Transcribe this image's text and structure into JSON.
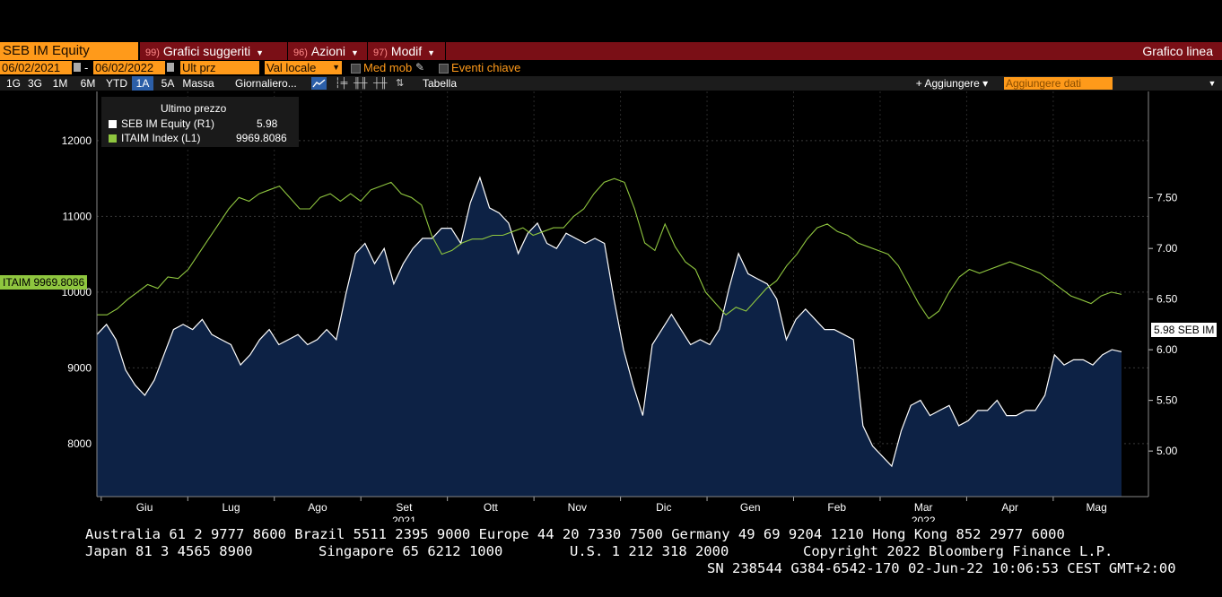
{
  "toolbar": {
    "ticker": "SEB IM Equity",
    "menu1_num": "99)",
    "menu1": "Grafici suggeriti",
    "menu2_num": "96)",
    "menu2": "Azioni",
    "menu3_num": "97)",
    "menu3": "Modif",
    "chart_type": "Grafico linea"
  },
  "options": {
    "date_from": "06/02/2021",
    "date_sep": "-",
    "date_to": "06/02/2022",
    "field": "Ult prz",
    "currency": "Val locale",
    "moving_avg": "Med mob",
    "key_events": "Eventi chiave"
  },
  "periods": [
    "1G",
    "3G",
    "1M",
    "6M",
    "YTD",
    "1A",
    "5A",
    "Massa"
  ],
  "active_period": "1A",
  "controls": {
    "interval": "Giornaliero...",
    "table": "Tabella",
    "add": "+ Aggiungere ▾",
    "add_data_placeholder": "Aggiungere dati"
  },
  "legend": {
    "header": "Ultimo prezzo",
    "rows": [
      {
        "label": "SEB IM Equity  (R1)",
        "value": "5.98",
        "color": "#ffffff"
      },
      {
        "label": "ITAIM Index  (L1)",
        "value": "9969.8086",
        "color": "#8fc63f"
      }
    ]
  },
  "badges": {
    "left": "ITAIM 9969.8086",
    "right": "5.98 SEB IM"
  },
  "footer": {
    "line1": "Australia 61 2 9777 8600 Brazil 5511 2395 9000 Europe 44 20 7330 7500 Germany 49 69 9204 1210 Hong Kong 852 2977 6000",
    "line2a": "Japan 81 3 4565 8900",
    "line2b": "Singapore 65 6212 1000",
    "line2c": "U.S. 1 212 318 2000",
    "line2d": "Copyright 2022 Bloomberg Finance L.P.",
    "line3": "SN 238544 G384-6542-170 02-Jun-22 10:06:53 CEST GMT+2:00"
  },
  "chart_data": {
    "type": "line",
    "x_labels": [
      "Giu",
      "Lug",
      "Ago",
      "Set",
      "Ott",
      "Nov",
      "Dic",
      "Gen",
      "Feb",
      "Mar",
      "Apr",
      "Mag"
    ],
    "year_labels": [
      {
        "label": "2021",
        "at": "Set"
      },
      {
        "label": "2022",
        "at": "Mar"
      }
    ],
    "left_axis": {
      "ticks": [
        8000,
        9000,
        10000,
        11000,
        12000
      ],
      "range": [
        7300,
        12650
      ]
    },
    "right_axis": {
      "ticks": [
        "5.00",
        "5.50",
        "6.00",
        "6.50",
        "7.00",
        "7.50"
      ],
      "range": [
        4.55,
        8.55
      ]
    },
    "series": [
      {
        "name": "SEB IM Equity",
        "axis": "right",
        "color": "#ffffff",
        "fill": "#0d2245",
        "values": [
          6.15,
          6.25,
          6.1,
          5.8,
          5.65,
          5.55,
          5.7,
          5.95,
          6.2,
          6.25,
          6.2,
          6.3,
          6.15,
          6.1,
          6.05,
          5.85,
          5.95,
          6.1,
          6.2,
          6.05,
          6.1,
          6.15,
          6.05,
          6.1,
          6.2,
          6.1,
          6.55,
          6.95,
          7.05,
          6.85,
          7.0,
          6.65,
          6.85,
          7.0,
          7.1,
          7.1,
          7.2,
          7.2,
          7.05,
          7.45,
          7.7,
          7.4,
          7.35,
          7.25,
          6.95,
          7.15,
          7.25,
          7.05,
          7.0,
          7.15,
          7.1,
          7.05,
          7.1,
          7.05,
          6.5,
          6.0,
          5.65,
          5.35,
          6.05,
          6.2,
          6.35,
          6.2,
          6.05,
          6.1,
          6.05,
          6.2,
          6.6,
          6.95,
          6.75,
          6.7,
          6.65,
          6.5,
          6.1,
          6.3,
          6.4,
          6.3,
          6.2,
          6.2,
          6.15,
          6.1,
          5.25,
          5.05,
          4.95,
          4.85,
          5.2,
          5.45,
          5.5,
          5.35,
          5.4,
          5.45,
          5.25,
          5.3,
          5.4,
          5.4,
          5.5,
          5.35,
          5.35,
          5.4,
          5.4,
          5.55,
          5.95,
          5.85,
          5.9,
          5.9,
          5.85,
          5.95,
          6.0,
          5.98
        ]
      },
      {
        "name": "ITAIM Index",
        "axis": "left",
        "color": "#8fc63f",
        "values": [
          9700,
          9700,
          9780,
          9900,
          10000,
          10100,
          10050,
          10200,
          10180,
          10300,
          10500,
          10700,
          10900,
          11100,
          11250,
          11200,
          11300,
          11350,
          11400,
          11250,
          11100,
          11100,
          11250,
          11300,
          11200,
          11300,
          11200,
          11350,
          11400,
          11450,
          11300,
          11250,
          11150,
          10750,
          10500,
          10550,
          10650,
          10700,
          10700,
          10750,
          10750,
          10800,
          10850,
          10750,
          10800,
          10850,
          10850,
          11000,
          11100,
          11300,
          11450,
          11500,
          11450,
          11100,
          10650,
          10550,
          10900,
          10600,
          10400,
          10300,
          10000,
          9850,
          9700,
          9800,
          9750,
          9900,
          10050,
          10150,
          10350,
          10500,
          10700,
          10850,
          10900,
          10800,
          10750,
          10650,
          10600,
          10550,
          10500,
          10350,
          10100,
          9850,
          9650,
          9750,
          10000,
          10200,
          10300,
          10250,
          10300,
          10350,
          10400,
          10350,
          10300,
          10250,
          10150,
          10050,
          9950,
          9900,
          9850,
          9950,
          10000,
          9969.8
        ]
      }
    ]
  }
}
